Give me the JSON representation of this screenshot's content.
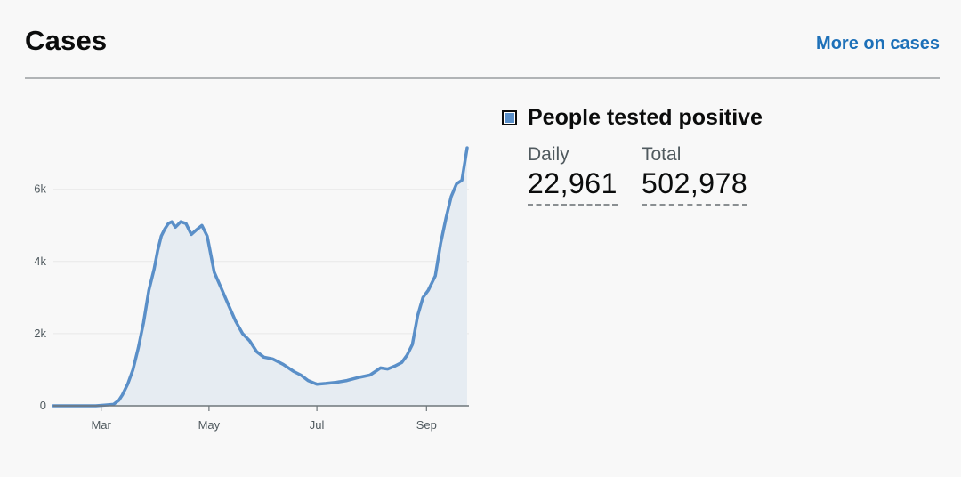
{
  "header": {
    "title": "Cases",
    "more_link": "More on cases"
  },
  "colors": {
    "accent": "#5a8fc8",
    "link": "#1d70b8",
    "area_fill": "#e6ecf2",
    "gridline": "#e8e8e8"
  },
  "legend": {
    "label": "People tested positive"
  },
  "stats": {
    "daily": {
      "label": "Daily",
      "value": "22,961"
    },
    "total": {
      "label": "Total",
      "value": "502,978"
    }
  },
  "chart_data": {
    "type": "area",
    "title": "",
    "xlabel": "",
    "ylabel": "",
    "ylim": [
      0,
      7300
    ],
    "yticks": [
      0,
      2000,
      4000,
      6000
    ],
    "ytick_labels": [
      "0",
      "2k",
      "4k",
      "6k"
    ],
    "xlim": [
      "2020-02-03",
      "2020-09-25"
    ],
    "xticks": [
      "2020-03-01",
      "2020-05-01",
      "2020-07-01",
      "2020-09-01"
    ],
    "xtick_labels": [
      "Mar",
      "May",
      "Jul",
      "Sep"
    ],
    "grid": true,
    "series": [
      {
        "name": "People tested positive",
        "points": [
          [
            "2020-02-03",
            0
          ],
          [
            "2020-02-27",
            0
          ],
          [
            "2020-03-03",
            20
          ],
          [
            "2020-03-08",
            40
          ],
          [
            "2020-03-11",
            150
          ],
          [
            "2020-03-13",
            300
          ],
          [
            "2020-03-16",
            600
          ],
          [
            "2020-03-19",
            1000
          ],
          [
            "2020-03-22",
            1600
          ],
          [
            "2020-03-25",
            2300
          ],
          [
            "2020-03-28",
            3200
          ],
          [
            "2020-03-31",
            3800
          ],
          [
            "2020-04-02",
            4300
          ],
          [
            "2020-04-04",
            4700
          ],
          [
            "2020-04-06",
            4900
          ],
          [
            "2020-04-08",
            5050
          ],
          [
            "2020-04-10",
            5100
          ],
          [
            "2020-04-12",
            4950
          ],
          [
            "2020-04-15",
            5100
          ],
          [
            "2020-04-18",
            5050
          ],
          [
            "2020-04-21",
            4750
          ],
          [
            "2020-04-24",
            4880
          ],
          [
            "2020-04-27",
            5000
          ],
          [
            "2020-04-30",
            4700
          ],
          [
            "2020-05-04",
            3700
          ],
          [
            "2020-05-08",
            3250
          ],
          [
            "2020-05-12",
            2800
          ],
          [
            "2020-05-16",
            2350
          ],
          [
            "2020-05-20",
            2000
          ],
          [
            "2020-05-24",
            1800
          ],
          [
            "2020-05-28",
            1500
          ],
          [
            "2020-06-01",
            1350
          ],
          [
            "2020-06-06",
            1300
          ],
          [
            "2020-06-12",
            1150
          ],
          [
            "2020-06-18",
            950
          ],
          [
            "2020-06-22",
            850
          ],
          [
            "2020-06-26",
            700
          ],
          [
            "2020-07-01",
            600
          ],
          [
            "2020-07-06",
            620
          ],
          [
            "2020-07-12",
            650
          ],
          [
            "2020-07-18",
            700
          ],
          [
            "2020-07-24",
            780
          ],
          [
            "2020-07-31",
            850
          ],
          [
            "2020-08-03",
            950
          ],
          [
            "2020-08-06",
            1050
          ],
          [
            "2020-08-10",
            1020
          ],
          [
            "2020-08-14",
            1100
          ],
          [
            "2020-08-18",
            1200
          ],
          [
            "2020-08-21",
            1400
          ],
          [
            "2020-08-24",
            1700
          ],
          [
            "2020-08-27",
            2500
          ],
          [
            "2020-08-30",
            3000
          ],
          [
            "2020-09-02",
            3200
          ],
          [
            "2020-09-06",
            3600
          ],
          [
            "2020-09-09",
            4500
          ],
          [
            "2020-09-12",
            5200
          ],
          [
            "2020-09-15",
            5800
          ],
          [
            "2020-09-18",
            6150
          ],
          [
            "2020-09-21",
            6250
          ],
          [
            "2020-09-24",
            7150
          ]
        ]
      }
    ]
  }
}
